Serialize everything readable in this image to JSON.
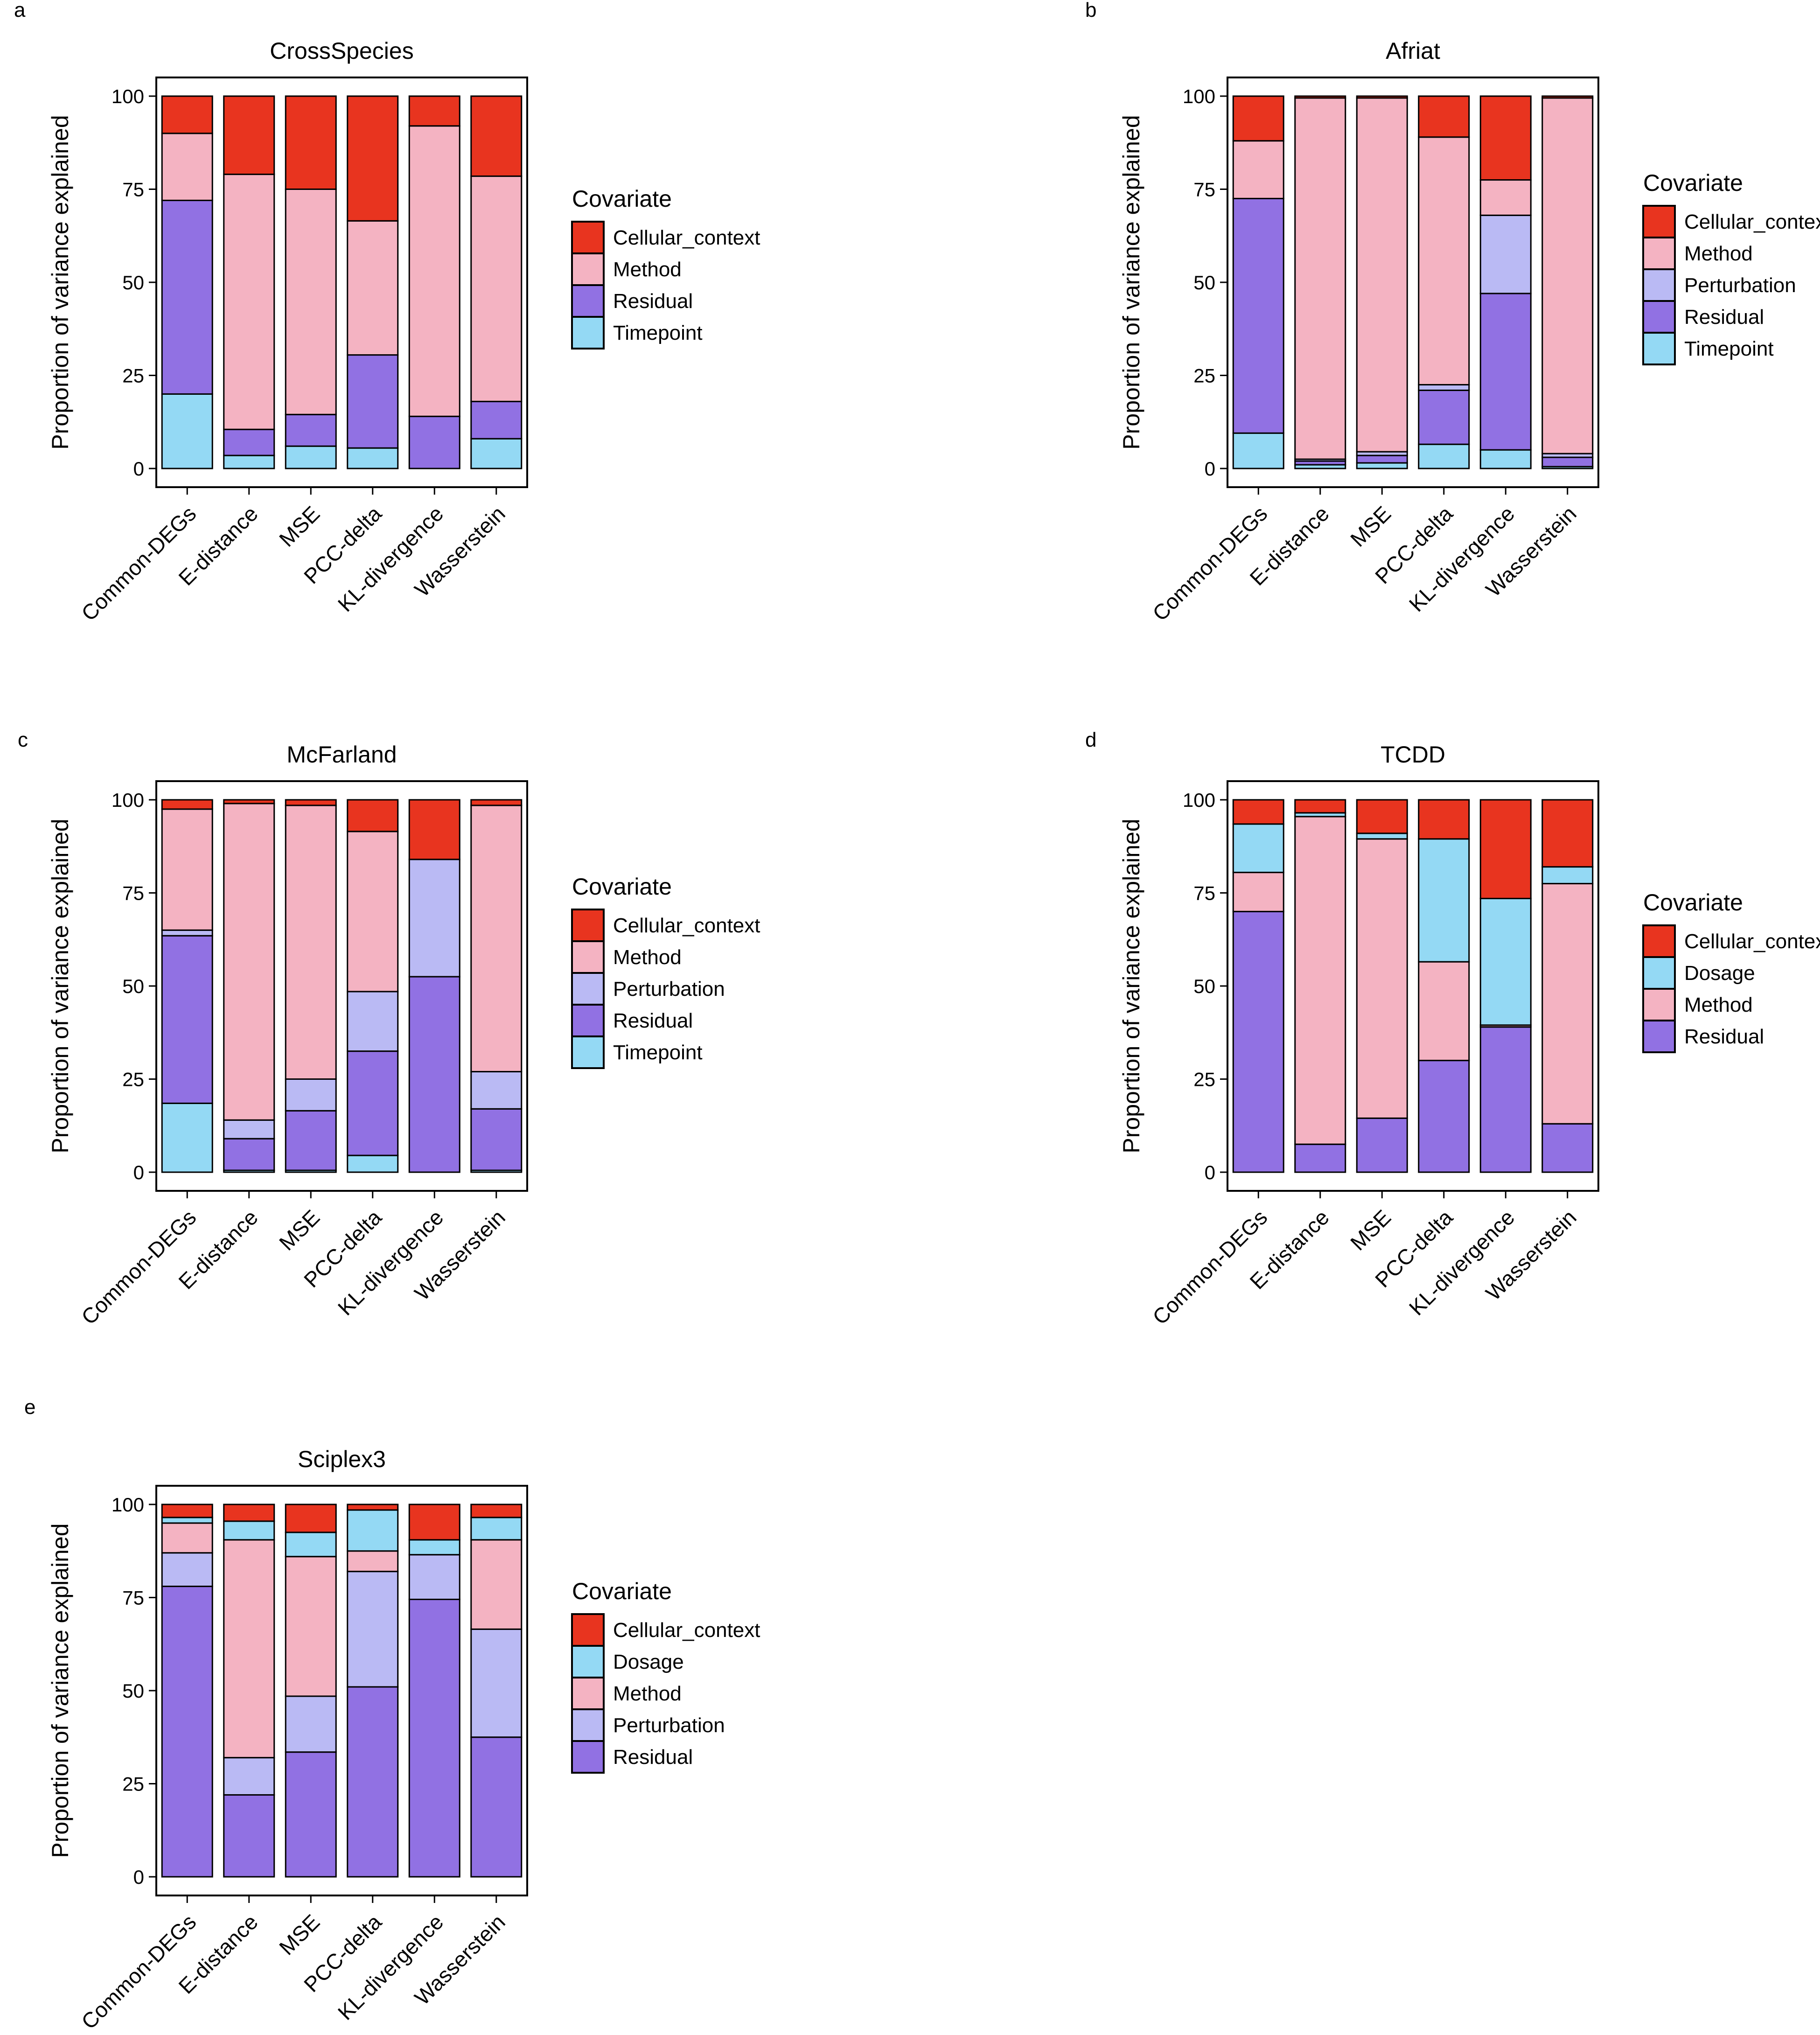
{
  "figure": {
    "ylabel": "Proportion of variance explained",
    "legend_title": "Covariate",
    "yticks": [
      "0",
      "25",
      "50",
      "75",
      "100"
    ],
    "colors": {
      "Cellular_context": "#e8341f",
      "Method": "#f4b3c2",
      "Perturbation": "#babaf4",
      "Residual": "#9171e3",
      "Timepoint": "#94d9f4",
      "Dosage": "#94d9f4"
    }
  },
  "chart_data": [
    {
      "type": "bar",
      "stacked": true,
      "panel": "a",
      "title": "CrossSpecies",
      "ylabel": "Proportion of variance explained",
      "ylim": [
        0,
        100
      ],
      "categories": [
        "Common-DEGs",
        "E-distance",
        "MSE",
        "PCC-delta",
        "KL-divergence",
        "Wasserstein"
      ],
      "legend_title": "Covariate",
      "legend": [
        "Cellular_context",
        "Method",
        "Residual",
        "Timepoint"
      ],
      "series": [
        {
          "name": "Timepoint",
          "values": [
            20,
            3.5,
            6,
            5.5,
            0,
            8
          ]
        },
        {
          "name": "Residual",
          "values": [
            52,
            7,
            8.5,
            25,
            14,
            10
          ]
        },
        {
          "name": "Method",
          "values": [
            18,
            68.5,
            60.5,
            36,
            78,
            60.5
          ]
        },
        {
          "name": "Cellular_context",
          "values": [
            10,
            21,
            25,
            33.5,
            8,
            21.5
          ]
        }
      ]
    },
    {
      "type": "bar",
      "stacked": true,
      "panel": "b",
      "title": "Afriat",
      "ylabel": "Proportion of variance explained",
      "ylim": [
        0,
        100
      ],
      "categories": [
        "Common-DEGs",
        "E-distance",
        "MSE",
        "PCC-delta",
        "KL-divergence",
        "Wasserstein"
      ],
      "legend_title": "Covariate",
      "legend": [
        "Cellular_context",
        "Method",
        "Perturbation",
        "Residual",
        "Timepoint"
      ],
      "series": [
        {
          "name": "Timepoint",
          "values": [
            9.5,
            1,
            1.5,
            6.5,
            5,
            0.5
          ]
        },
        {
          "name": "Residual",
          "values": [
            63,
            1,
            2,
            14.5,
            42,
            2.5
          ]
        },
        {
          "name": "Perturbation",
          "values": [
            0,
            0.5,
            1,
            1.5,
            21,
            1
          ]
        },
        {
          "name": "Method",
          "values": [
            15.5,
            97,
            95,
            66.5,
            9.5,
            95.5
          ]
        },
        {
          "name": "Cellular_context",
          "values": [
            12,
            0.5,
            0.5,
            11,
            22.5,
            0.5
          ]
        }
      ]
    },
    {
      "type": "bar",
      "stacked": true,
      "panel": "c",
      "title": "McFarland",
      "ylabel": "Proportion of variance explained",
      "ylim": [
        0,
        100
      ],
      "categories": [
        "Common-DEGs",
        "E-distance",
        "MSE",
        "PCC-delta",
        "KL-divergence",
        "Wasserstein"
      ],
      "legend_title": "Covariate",
      "legend": [
        "Cellular_context",
        "Method",
        "Perturbation",
        "Residual",
        "Timepoint"
      ],
      "series": [
        {
          "name": "Timepoint",
          "values": [
            18.5,
            0.5,
            0.5,
            4.5,
            0,
            0.5
          ]
        },
        {
          "name": "Residual",
          "values": [
            45,
            8.5,
            16,
            28,
            52.5,
            16.5
          ]
        },
        {
          "name": "Perturbation",
          "values": [
            1.5,
            5,
            8.5,
            16,
            31.5,
            10
          ]
        },
        {
          "name": "Method",
          "values": [
            32.5,
            85,
            73.5,
            43,
            0,
            71.5
          ]
        },
        {
          "name": "Cellular_context",
          "values": [
            2.5,
            1,
            1.5,
            8.5,
            16,
            1.5
          ]
        }
      ]
    },
    {
      "type": "bar",
      "stacked": true,
      "panel": "d",
      "title": "TCDD",
      "ylabel": "Proportion of variance explained",
      "ylim": [
        0,
        100
      ],
      "categories": [
        "Common-DEGs",
        "E-distance",
        "MSE",
        "PCC-delta",
        "KL-divergence",
        "Wasserstein"
      ],
      "legend_title": "Covariate",
      "legend": [
        "Cellular_context",
        "Dosage",
        "Method",
        "Residual"
      ],
      "series": [
        {
          "name": "Residual",
          "values": [
            70,
            7.5,
            14.5,
            30,
            39,
            13
          ]
        },
        {
          "name": "Method",
          "values": [
            10.5,
            88,
            75,
            26.5,
            0.5,
            64.5
          ]
        },
        {
          "name": "Dosage",
          "values": [
            13,
            1,
            1.5,
            33,
            34,
            4.5
          ]
        },
        {
          "name": "Cellular_context",
          "values": [
            6.5,
            3.5,
            9,
            10.5,
            26.5,
            18
          ]
        }
      ]
    },
    {
      "type": "bar",
      "stacked": true,
      "panel": "e",
      "title": "Sciplex3",
      "ylabel": "Proportion of variance explained",
      "ylim": [
        0,
        100
      ],
      "categories": [
        "Common-DEGs",
        "E-distance",
        "MSE",
        "PCC-delta",
        "KL-divergence",
        "Wasserstein"
      ],
      "legend_title": "Covariate",
      "legend": [
        "Cellular_context",
        "Dosage",
        "Method",
        "Perturbation",
        "Residual"
      ],
      "series": [
        {
          "name": "Residual",
          "values": [
            78,
            22,
            33.5,
            51,
            74.5,
            37.5
          ]
        },
        {
          "name": "Perturbation",
          "values": [
            9,
            10,
            15,
            31,
            12,
            29
          ]
        },
        {
          "name": "Method",
          "values": [
            8,
            58.5,
            37.5,
            5.5,
            0,
            24
          ]
        },
        {
          "name": "Dosage",
          "values": [
            1.5,
            5,
            6.5,
            11,
            4,
            6
          ]
        },
        {
          "name": "Cellular_context",
          "values": [
            3.5,
            4.5,
            7.5,
            1.5,
            9.5,
            3.5
          ]
        }
      ]
    }
  ]
}
